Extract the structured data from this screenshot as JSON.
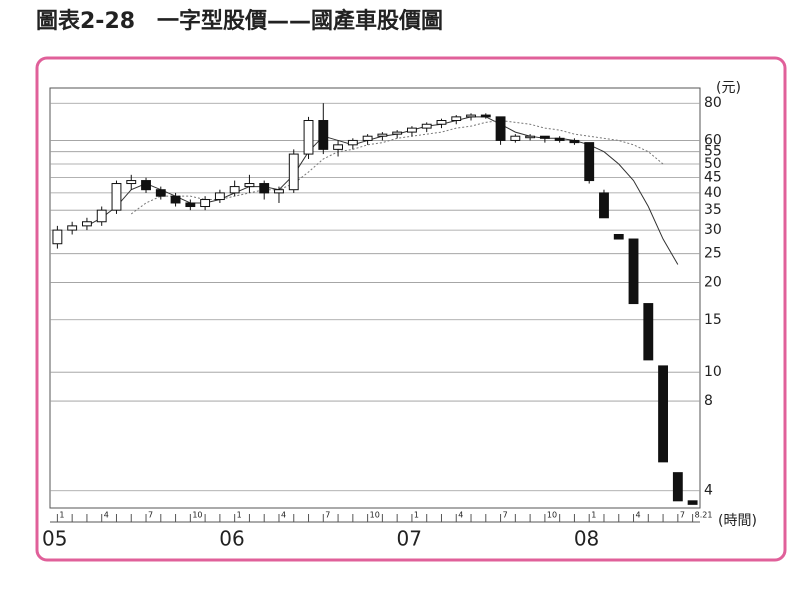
{
  "chart_data": {
    "type": "candlestick",
    "title": "圖表2-28　一字型股價——國產車股價圖",
    "y_unit": "(元)",
    "x_unit": "(時間)",
    "log_scale": true,
    "grid": true,
    "color": "#111111",
    "frame_color": "#e0609a",
    "ylim": [
      3.5,
      90
    ],
    "yticks": [
      80,
      60,
      55,
      50,
      45,
      40,
      35,
      30,
      25,
      20,
      15,
      10,
      8,
      4
    ],
    "year_labels": [
      "05",
      "06",
      "07",
      "08"
    ],
    "categories": [
      "1",
      null,
      null,
      "4",
      null,
      null,
      "7",
      null,
      null,
      "10",
      null,
      null,
      "1",
      null,
      null,
      "4",
      null,
      null,
      "7",
      null,
      null,
      "10",
      null,
      null,
      "1",
      null,
      null,
      "4",
      null,
      null,
      "7",
      null,
      null,
      "10",
      null,
      null,
      "1",
      null,
      null,
      "4",
      null,
      null,
      "7",
      "8.21"
    ],
    "open": [
      27,
      30,
      31,
      32,
      35,
      43,
      44,
      41,
      39,
      37,
      36,
      38,
      40,
      42,
      43,
      40,
      41,
      54,
      70,
      56,
      58,
      60,
      62,
      63,
      64,
      66,
      68,
      70,
      72,
      73,
      72,
      60,
      62,
      62,
      61,
      60,
      59,
      40,
      29,
      28,
      17,
      10.5,
      4.6,
      3.7
    ],
    "high": [
      31,
      32,
      33,
      36,
      44,
      46,
      45,
      42,
      40,
      38,
      39,
      41,
      44,
      46,
      44,
      42,
      56,
      72,
      80,
      60,
      61,
      63,
      64,
      65,
      67,
      69,
      71,
      73,
      74,
      74,
      72,
      63,
      63,
      62,
      62,
      61,
      59,
      41,
      29,
      28,
      17,
      10.5,
      4.6,
      3.7
    ],
    "low": [
      26,
      29,
      30,
      31,
      34,
      41,
      40,
      38,
      36,
      35,
      35,
      37,
      39,
      40,
      38,
      37,
      40,
      52,
      54,
      53,
      56,
      58,
      60,
      61,
      62,
      64,
      66,
      68,
      70,
      71,
      58,
      59,
      60,
      59,
      59,
      58,
      43,
      33,
      28,
      17,
      11,
      5,
      3.7,
      3.6
    ],
    "close": [
      30,
      31,
      32,
      35,
      43,
      44,
      41,
      39,
      37,
      36,
      38,
      40,
      42,
      43,
      40,
      41,
      54,
      70,
      56,
      58,
      60,
      62,
      63,
      64,
      66,
      68,
      70,
      72,
      73,
      72,
      60,
      62,
      62,
      61,
      60,
      59,
      44,
      33,
      28,
      17,
      11,
      5,
      3.7,
      3.6
    ],
    "moving_averages": [
      {
        "color": "#333333",
        "values": [
          null,
          null,
          31,
          33,
          36,
          41,
          43,
          41,
          39,
          37,
          37,
          38,
          40,
          42,
          42,
          41,
          46,
          55,
          62,
          60,
          58,
          60,
          62,
          63,
          65,
          67,
          68,
          70,
          72,
          72,
          68,
          64,
          62,
          61,
          61,
          60,
          58,
          55,
          50,
          44,
          36,
          28,
          23,
          null
        ]
      },
      {
        "color": "#777777",
        "values": [
          null,
          null,
          null,
          null,
          null,
          34,
          37,
          39,
          39,
          39,
          38,
          38,
          39,
          40,
          41,
          41,
          43,
          47,
          52,
          55,
          56,
          58,
          59,
          61,
          62,
          63,
          64,
          66,
          67,
          69,
          70,
          69,
          68,
          66,
          65,
          63,
          62,
          61,
          60,
          58,
          55,
          50,
          null,
          null
        ]
      }
    ]
  }
}
